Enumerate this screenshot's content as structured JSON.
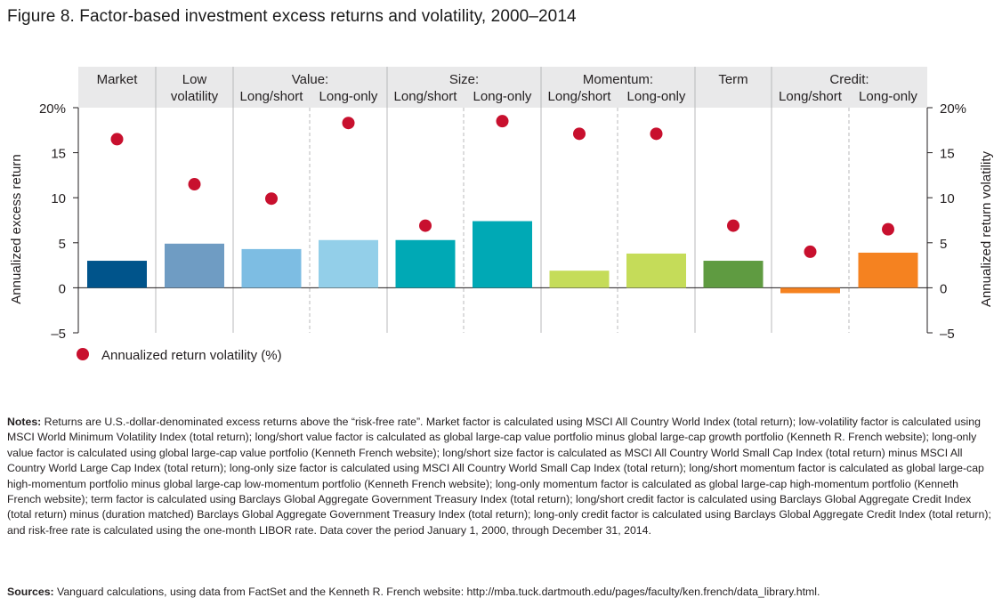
{
  "title": "Figure 8. Factor-based investment excess returns and volatility, 2000–2014",
  "chart_data": {
    "type": "bar",
    "ylabel_left": "Annualized excess return",
    "ylabel_right": "Annualized return volatility",
    "ylim": [
      -5,
      20
    ],
    "yticks": [
      "20%",
      "15",
      "10",
      "5",
      "0",
      "–5"
    ],
    "ytick_values": [
      20,
      15,
      10,
      5,
      0,
      -5
    ],
    "groups": [
      {
        "label_line1": "Market",
        "label_line2": "",
        "sublabels": []
      },
      {
        "label_line1": "Low",
        "label_line2": "volatility",
        "sublabels": []
      },
      {
        "label_line1": "Value:",
        "label_line2": "",
        "sublabels": [
          "Long/short",
          "Long-only"
        ]
      },
      {
        "label_line1": "Size:",
        "label_line2": "",
        "sublabels": [
          "Long/short",
          "Long-only"
        ]
      },
      {
        "label_line1": "Momentum:",
        "label_line2": "",
        "sublabels": [
          "Long/short",
          "Long-only"
        ]
      },
      {
        "label_line1": "Term",
        "label_line2": "",
        "sublabels": []
      },
      {
        "label_line1": "Credit:",
        "label_line2": "",
        "sublabels": [
          "Long/short",
          "Long-only"
        ]
      }
    ],
    "categories": [
      "Market",
      "Low volatility",
      "Value: Long/short",
      "Value: Long-only",
      "Size: Long/short",
      "Size: Long-only",
      "Momentum: Long/short",
      "Momentum: Long-only",
      "Term",
      "Credit: Long/short",
      "Credit: Long-only"
    ],
    "excess_return": [
      3.0,
      4.9,
      4.3,
      5.3,
      5.3,
      7.4,
      1.9,
      3.8,
      3.0,
      -0.6,
      3.9
    ],
    "volatility": [
      16.5,
      11.5,
      9.9,
      18.3,
      6.9,
      18.5,
      17.1,
      17.1,
      6.9,
      4.0,
      6.5
    ],
    "bar_colors": [
      "#00548b",
      "#6f9cc3",
      "#7dbde3",
      "#93cfe9",
      "#00a9b5",
      "#00a9b5",
      "#c5dc59",
      "#c5dc59",
      "#5f9b41",
      "#f58220",
      "#f58220"
    ],
    "marker_color": "#c8102e",
    "legend_label": "Annualized return volatility (%)"
  },
  "notes_label": "Notes:",
  "notes_text": " Returns are U.S.-dollar-denominated excess returns above the “risk-free rate”. Market factor is calculated using MSCI All Country World Index (total return); low-volatility factor is calculated using MSCI World Minimum Volatility Index (total return); long/short value factor is calculated as global large-cap value portfolio minus global large-cap growth portfolio (Kenneth R. French website); long-only value factor is calculated using global large-cap value portfolio (Kenneth French website); long/short size factor is calculated as MSCI All Country World Small Cap Index (total return) minus MSCI All Country World Large Cap Index (total return); long-only size factor is calculated using MSCI All Country World Small Cap Index (total return); long/short momentum factor is calculated as global large-cap high-momentum portfolio minus global large-cap low-momentum portfolio (Kenneth French website); long-only momentum factor is calculated as global large-cap high-momentum portfolio (Kenneth French website); term factor is calculated using Barclays Global Aggregate Government Treasury Index (total return); long/short credit factor is calculated using Barclays Global Aggregate Credit Index (total return) minus (duration matched) Barclays Global Aggregate Government Treasury Index (total return); long-only credit factor is calculated using Barclays Global Aggregate Credit Index (total return); and risk-free rate is calculated using the one-month LIBOR rate. Data cover the period January 1, 2000, through December 31, 2014.",
  "sources_label": "Sources:",
  "sources_text": " Vanguard calculations, using data from FactSet and the Kenneth R. French website: http://mba.tuck.dartmouth.edu/pages/faculty/ken.french/data_library.html."
}
